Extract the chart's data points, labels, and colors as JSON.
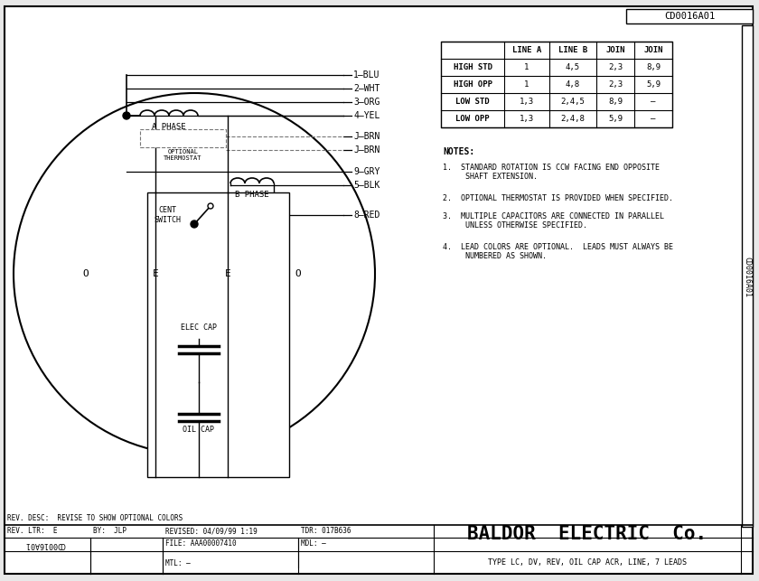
{
  "bg_color": "#e8e8e8",
  "diagram_bg": "#ffffff",
  "title_ref": "CD0016A01",
  "table_headers": [
    "",
    "LINE A",
    "LINE B",
    "JOIN",
    "JOIN"
  ],
  "table_rows": [
    [
      "HIGH STD",
      "1",
      "4,5",
      "2,3",
      "8,9"
    ],
    [
      "HIGH OPP",
      "1",
      "4,8",
      "2,3",
      "5,9"
    ],
    [
      "LOW STD",
      "1,3",
      "2,4,5",
      "8,9",
      "–"
    ],
    [
      "LOW OPP",
      "1,3",
      "2,4,8",
      "5,9",
      "–"
    ]
  ],
  "notes_title": "NOTES:",
  "notes": [
    "1.  STANDARD ROTATION IS CCW FACING END OPPOSITE\n     SHAFT EXTENSION.",
    "2.  OPTIONAL THERMOSTAT IS PROVIDED WHEN SPECIFIED.",
    "3.  MULTIPLE CAPACITORS ARE CONNECTED IN PARALLEL\n     UNLESS OTHERWISE SPECIFIED.",
    "4.  LEAD COLORS ARE OPTIONAL.  LEADS MUST ALWAYS BE\n     NUMBERED AS SHOWN."
  ],
  "wire_labels": [
    "1–BLU",
    "2–WHT",
    "3–ORG",
    "4–YEL",
    "J–BRN",
    "J–BRN",
    "9–GRY",
    "5–BLK",
    "8–RED"
  ],
  "footer_desc": "REV. DESC:  REVISE TO SHOW OPTIONAL COLORS",
  "footer_ltr": "REV. LTR:  E",
  "footer_by": "BY:  JLP",
  "footer_revised": "REVISED: 04/09/99 1:19",
  "footer_tdr": "TDR: 017B636",
  "footer_partno": "CD0016A01",
  "footer_file": "FILE: AAA00007410",
  "footer_mdl": "MDL: –",
  "footer_mtl": "MTL: –",
  "footer_company": "BALDOR  ELECTRIC  Co.",
  "footer_type": "TYPE LC, DV, REV, OIL CAP ACR, LINE, 7 LEADS",
  "side_label": "CD0016A01",
  "lc": "#000000",
  "fc": "#000000",
  "dc": "#777777"
}
